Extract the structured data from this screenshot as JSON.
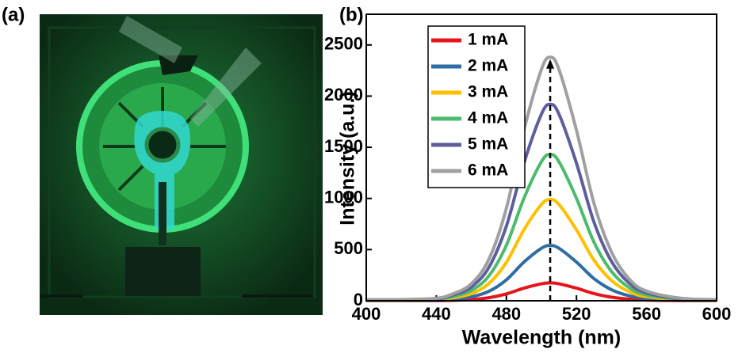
{
  "photo": {
    "label": "(a)"
  },
  "chart_data": {
    "type": "line",
    "panel_label": "(b)",
    "x_label": "Wavelength (nm)",
    "y_label": "Intensity (a.u.)",
    "xlim": [
      400,
      600
    ],
    "xticks": [
      400,
      440,
      480,
      520,
      560,
      600
    ],
    "ylim": [
      0,
      2800
    ],
    "yticks": [
      0,
      500,
      1000,
      1500,
      2000,
      2500
    ],
    "legend": "upper left",
    "x": [
      400,
      420,
      440,
      450,
      460,
      470,
      480,
      490,
      500,
      505,
      510,
      520,
      530,
      540,
      550,
      560,
      580,
      600
    ],
    "series": [
      {
        "name": "1 mA",
        "color": "#e8141c",
        "values": [
          1,
          1,
          2,
          5,
          12,
          30,
          67,
          123,
          166,
          175,
          166,
          123,
          70,
          35,
          16,
          7,
          2,
          1
        ]
      },
      {
        "name": "2 mA",
        "color": "#2e6da4",
        "values": [
          3,
          3,
          5,
          16,
          38,
          92,
          205,
          378,
          513,
          540,
          513,
          378,
          216,
          108,
          49,
          22,
          5,
          3
        ]
      },
      {
        "name": "3 mA",
        "color": "#ffc000",
        "values": [
          5,
          5,
          10,
          30,
          69,
          168,
          376,
          693,
          941,
          990,
          941,
          693,
          396,
          198,
          89,
          40,
          10,
          5
        ]
      },
      {
        "name": "4 mA",
        "color": "#4cbb6c",
        "values": [
          7,
          7,
          14,
          43,
          100,
          243,
          543,
          1001,
          1359,
          1430,
          1359,
          1001,
          572,
          286,
          129,
          57,
          14,
          7
        ]
      },
      {
        "name": "5 mA",
        "color": "#5e5e9e",
        "values": [
          10,
          10,
          19,
          58,
          134,
          326,
          730,
          1344,
          1824,
          1920,
          1824,
          1344,
          768,
          384,
          173,
          77,
          19,
          10
        ]
      },
      {
        "name": "6 mA",
        "color": "#a0a0a0",
        "values": [
          12,
          12,
          24,
          71,
          167,
          405,
          904,
          1666,
          2261,
          2380,
          2261,
          1666,
          952,
          476,
          214,
          95,
          24,
          12
        ]
      }
    ],
    "annotation_line": {
      "x": 505,
      "y_end": 2330
    }
  }
}
